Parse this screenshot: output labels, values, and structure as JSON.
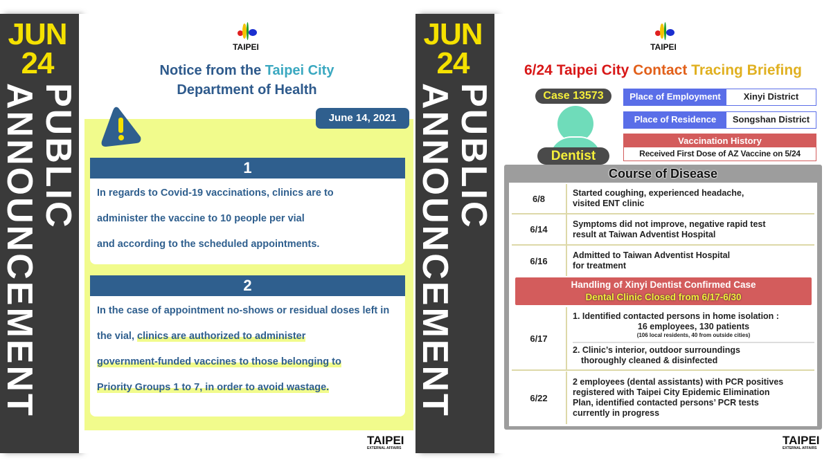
{
  "left": {
    "strip": {
      "month": "JUN",
      "day": "24",
      "line1": "PUBLIC",
      "line2": "ANNOUNCEMENT"
    },
    "logo": {
      "text": "TAIPEI"
    },
    "title": {
      "part1": "Notice from the ",
      "part2": "Taipei City",
      "part3": "Department of Health"
    },
    "date": "June 14, 2021",
    "icon": "warning-triangle-icon",
    "sections": [
      {
        "number": "1",
        "lines": [
          "In regards to Covid-19 vaccinations, clinics are to",
          "administer the vaccine to 10 people per vial",
          "and according to the scheduled appointments."
        ]
      },
      {
        "number": "2",
        "text_plain": "In the case of appointment no-shows or residual doses left in the vial, ",
        "text_highlight1": "clinics are authorized to administer",
        "text_highlight2": "government-funded vaccines to those belonging to",
        "text_highlight3": "Priority Groups 1 to 7, in order to avoid wastage."
      }
    ],
    "footer": {
      "brand": "TAIPEI",
      "sub": "EXTERNAL AFFAIRS"
    }
  },
  "right": {
    "strip": {
      "month": "JUN",
      "day": "24",
      "line1": "PUBLIC",
      "line2": "ANNOUNCEMENT"
    },
    "logo": {
      "text": "TAIPEI"
    },
    "title": {
      "part1": "6/24 Taipei City ",
      "part2": "Contact ",
      "part3": "Tracing Briefing"
    },
    "case": "Case 13573",
    "occupation": "Dentist",
    "employment": {
      "label": "Place of Employment",
      "value": "Xinyi District"
    },
    "residence": {
      "label": "Place of Residence",
      "value": "Songshan District"
    },
    "vaccination": {
      "label": "Vaccination History",
      "value": "Received First Dose of AZ Vaccine on 5/24"
    },
    "course": {
      "title": "Course of Disease",
      "rows": [
        {
          "date": "6/8",
          "text": [
            "Started coughing, experienced headache,",
            "visited ENT clinic"
          ]
        },
        {
          "date": "6/14",
          "text": [
            "Symptoms did not improve, negative rapid test",
            "result at Taiwan Adventist Hospital"
          ]
        },
        {
          "date": "6/16",
          "text": [
            "Admitted to Taiwan Adventist Hospital",
            "for treatment"
          ]
        }
      ],
      "banner": {
        "line1": "Handling of Xinyi Dentist Confirmed Case",
        "line2": "Dental Clinic Closed from 6/17-6/30"
      },
      "row617": {
        "date": "6/17",
        "item1": "1. Identified contacted persons in home isolation :",
        "item1b": "16 employees, 130 patients",
        "item1c": "(106 local residents, 40 from outside cities)",
        "item2": "2. Clinic’s interior, outdoor surroundings",
        "item2b": "thoroughly cleaned & disinfected"
      },
      "row622": {
        "date": "6/22",
        "text": [
          "2 employees (dental assistants) with PCR positives",
          "registered with Taipei City Epidemic Elimination",
          "Plan, identified contacted persons’ PCR tests",
          "currently in progress"
        ]
      }
    },
    "footer": {
      "brand": "TAIPEI",
      "sub": "EXTERNAL AFFAIRS"
    }
  },
  "colors": {
    "dark_strip": "#3a3a3a",
    "yellow": "#f5e100",
    "blue": "#2f5f8e",
    "teal": "#3aa8c0",
    "red": "#d35c5c",
    "indigo": "#5a6ee8"
  }
}
